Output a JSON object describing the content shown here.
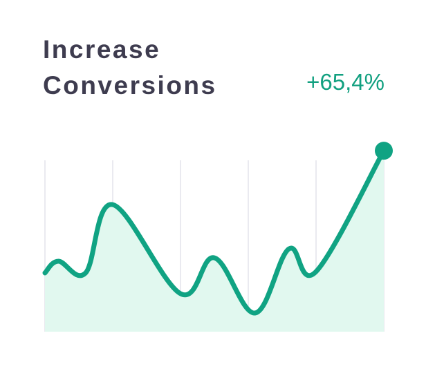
{
  "chart_data": {
    "type": "area",
    "title": "Increase Conversions",
    "change": "+65,4%",
    "x": [
      0,
      4,
      12,
      20,
      40,
      50,
      62,
      72,
      80,
      100
    ],
    "values": [
      31.5,
      37.8,
      31.5,
      68.1,
      20.4,
      39.6,
      10,
      44.4,
      32.2,
      97
    ],
    "xlim": [
      0,
      100
    ],
    "ylim": [
      0,
      100
    ],
    "xticks": [
      0,
      20,
      40,
      60,
      80,
      100
    ],
    "color": "#10a383",
    "fill": "#e1f8ef",
    "grid": true
  }
}
